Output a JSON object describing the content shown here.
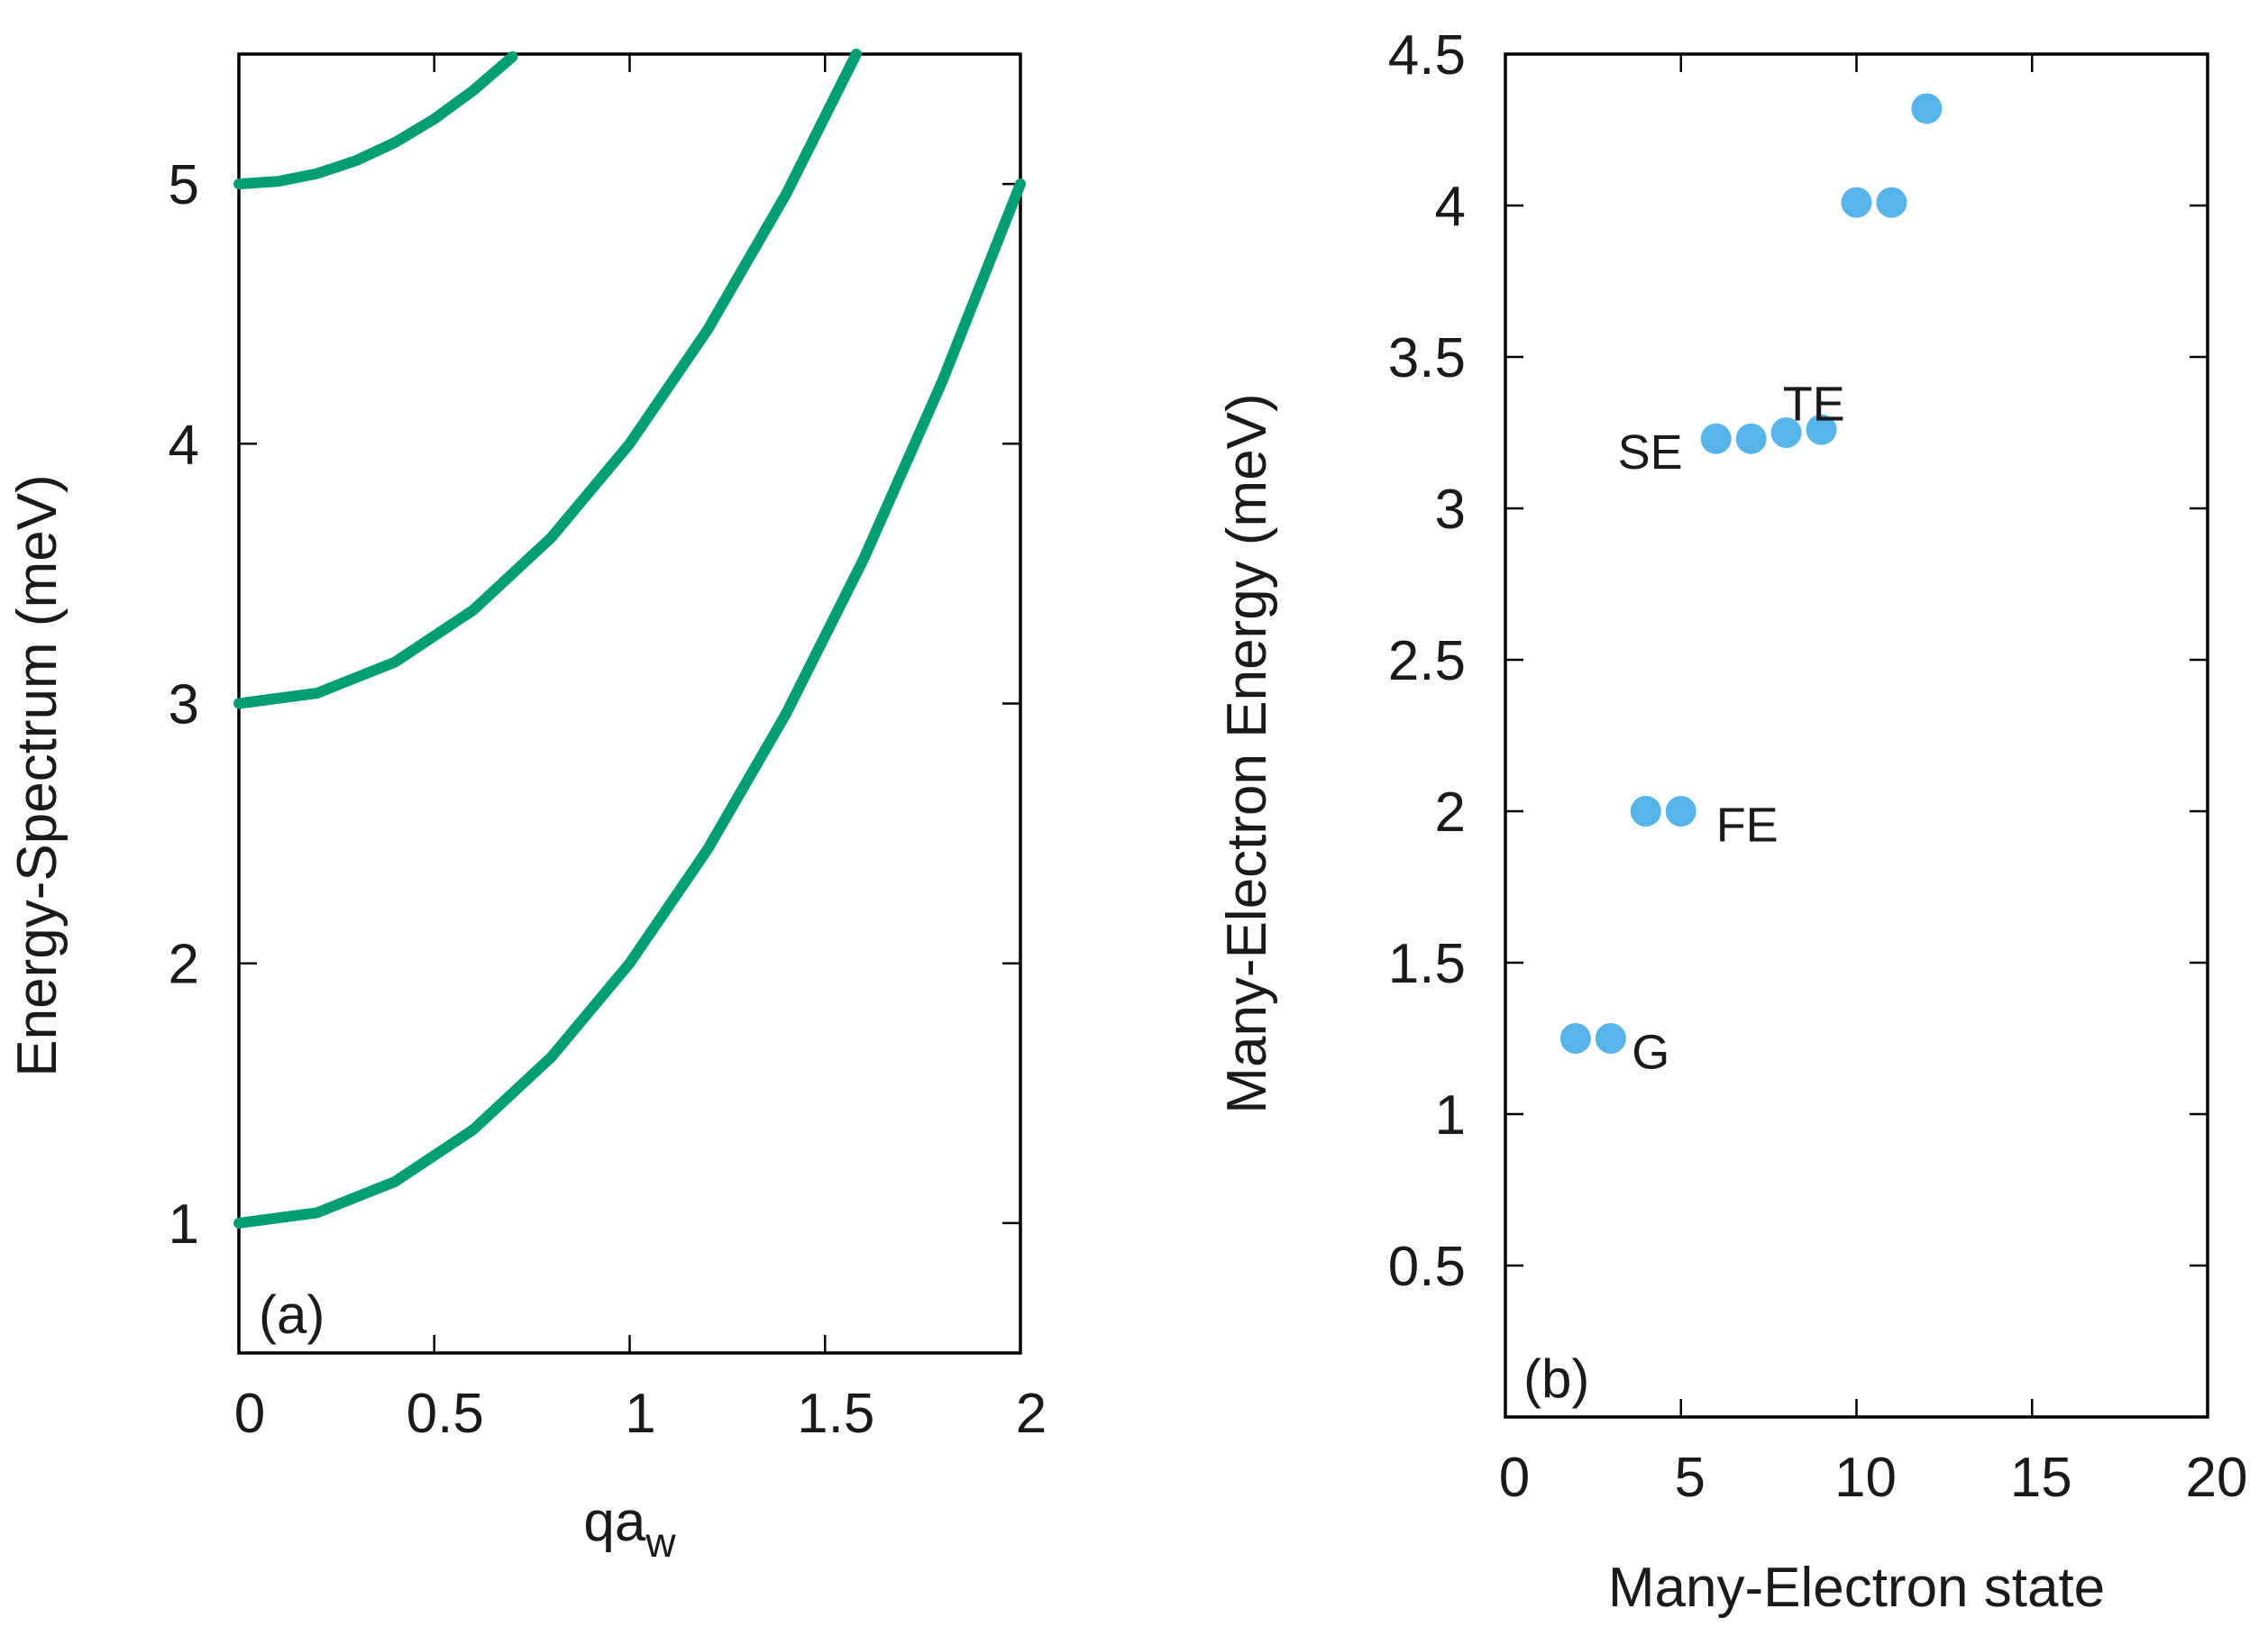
{
  "chart_data": [
    {
      "type": "line",
      "panel_label": "(a)",
      "xlabel_main": "qa",
      "xlabel_sub": "w",
      "ylabel": "Energy-Spectrum (meV)",
      "xlim": [
        0,
        2
      ],
      "ylim": [
        0.5,
        5.5
      ],
      "xticks": [
        0,
        0.5,
        1,
        1.5,
        2
      ],
      "xtick_labels": [
        "0",
        "0.5",
        "1",
        "1.5",
        "2"
      ],
      "yticks": [
        1,
        2,
        3,
        4,
        5
      ],
      "ytick_labels": [
        "1",
        "2",
        "3",
        "4",
        "5"
      ],
      "grid": false,
      "series": [
        {
          "x": [
            0,
            0.2,
            0.4,
            0.6,
            0.8,
            1.0,
            1.2,
            1.4,
            1.6,
            1.8,
            2.0
          ],
          "y": [
            1.0,
            1.04,
            1.16,
            1.36,
            1.64,
            2.0,
            2.44,
            2.96,
            3.56,
            4.24,
            5.0
          ]
        },
        {
          "x": [
            0,
            0.2,
            0.4,
            0.6,
            0.8,
            1.0,
            1.2,
            1.4,
            1.58
          ],
          "y": [
            3.0,
            3.04,
            3.16,
            3.36,
            3.64,
            4.0,
            4.44,
            4.96,
            5.5
          ]
        },
        {
          "x": [
            0,
            0.1,
            0.2,
            0.3,
            0.4,
            0.5,
            0.6,
            0.7
          ],
          "y": [
            5.0,
            5.01,
            5.04,
            5.09,
            5.16,
            5.25,
            5.36,
            5.49
          ]
        }
      ],
      "line_color": "#009e73"
    },
    {
      "type": "scatter",
      "panel_label": "(b)",
      "xlabel": "Many-Electron state",
      "ylabel": "Many-Electron Energy (meV)",
      "xlim": [
        0,
        20
      ],
      "ylim": [
        0,
        4.5
      ],
      "xticks": [
        0,
        5,
        10,
        15,
        20
      ],
      "xtick_labels": [
        "0",
        "5",
        "10",
        "15",
        "20"
      ],
      "yticks": [
        0.5,
        1,
        1.5,
        2,
        2.5,
        3,
        3.5,
        4,
        4.5
      ],
      "ytick_labels": [
        "0.5",
        "1",
        "1.5",
        "2",
        "2.5",
        "3",
        "3.5",
        "4",
        "4.5"
      ],
      "grid": false,
      "points": [
        {
          "x": 2,
          "y": 1.25
        },
        {
          "x": 3,
          "y": 1.25
        },
        {
          "x": 4,
          "y": 2.0
        },
        {
          "x": 5,
          "y": 2.0
        },
        {
          "x": 6,
          "y": 3.23
        },
        {
          "x": 7,
          "y": 3.23
        },
        {
          "x": 8,
          "y": 3.25
        },
        {
          "x": 9,
          "y": 3.26
        },
        {
          "x": 10,
          "y": 4.01
        },
        {
          "x": 11,
          "y": 4.01
        },
        {
          "x": 12,
          "y": 4.32
        }
      ],
      "annotations": [
        {
          "text": "G",
          "x": 3.6,
          "y": 1.21
        },
        {
          "text": "FE",
          "x": 6.0,
          "y": 1.96
        },
        {
          "text": "SE",
          "x": 3.2,
          "y": 3.19
        },
        {
          "text": "TE",
          "x": 7.9,
          "y": 3.35
        }
      ],
      "marker_color": "#56b4e9"
    }
  ]
}
